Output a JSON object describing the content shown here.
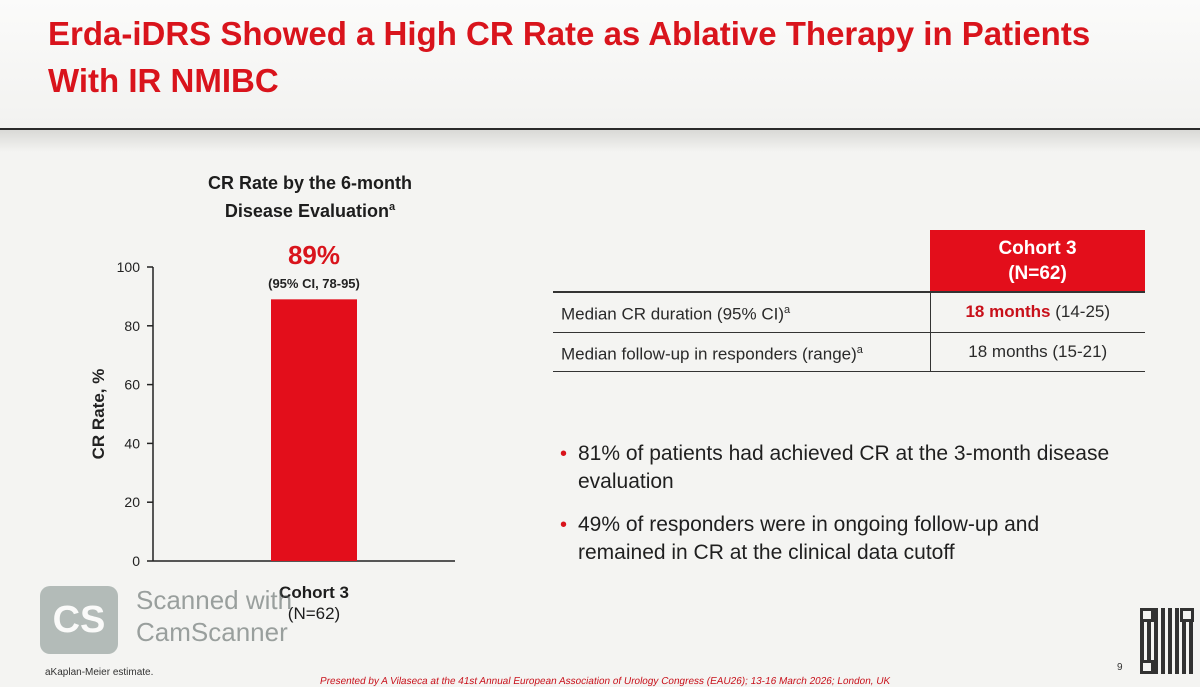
{
  "slide": {
    "title": "Erda-iDRS Showed a High CR Rate as Ablative Therapy in Patients With IR NMIBC"
  },
  "chart_data": {
    "type": "bar",
    "title": "CR Rate by the 6-month Disease Evaluation",
    "title_line1": "CR Rate by the 6-month",
    "title_line2": "Disease Evaluation",
    "title_superscript": "a",
    "categories": [
      "Cohort 3"
    ],
    "category_sublabels": [
      "(N=62)"
    ],
    "values": [
      89
    ],
    "data_label": "89%",
    "data_sublabel": "(95% CI, 78-95)",
    "ylabel": "CR Rate, %",
    "xlabel": "",
    "ylim": [
      0,
      100
    ],
    "yticks": [
      0,
      20,
      40,
      60,
      80,
      100
    ],
    "bar_color": "#e30e1b",
    "label_color": "#d9141c"
  },
  "table": {
    "column_header_line1": "Cohort 3",
    "column_header_line2": "(N=62)",
    "rows": [
      {
        "label": "Median CR duration (95% CI)",
        "label_sup": "a",
        "value_bold": "18 months",
        "value_rest": " (14-25)"
      },
      {
        "label": "Median follow-up in responders (range)",
        "label_sup": "a",
        "value_bold": "",
        "value_rest": "18 months (15-21)"
      }
    ]
  },
  "bullets": [
    "81% of patients had achieved CR at the 3-month disease evaluation",
    "49% of responders were in ongoing follow-up and remained in CR at the clinical data cutoff"
  ],
  "footer": {
    "footnote": "aKaplan-Meier estimate.",
    "presented_by": "Presented by A Vilaseca at the 41st Annual European Association of Urology Congress (EAU26); 13-16 March 2026; London, UK",
    "page_number": "9"
  },
  "watermark": {
    "logo_text": "CS",
    "line1": "Scanned with",
    "line2": "CamScanner"
  },
  "colors": {
    "accent": "#d9141c",
    "header_fill": "#e30e1b"
  }
}
